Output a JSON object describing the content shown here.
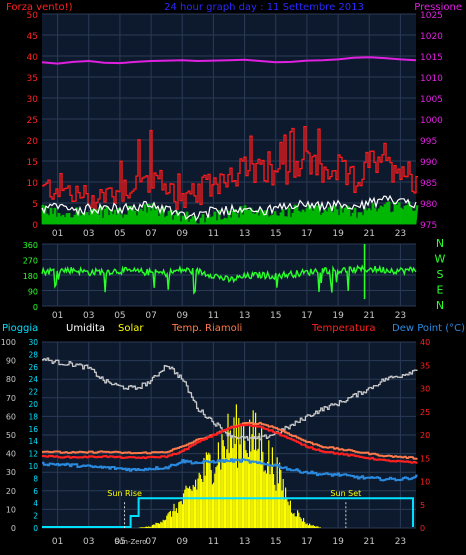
{
  "chart_data": [
    {
      "type": "line",
      "id": "wind-pressure",
      "title": "24 hour graph day : 11 Settembre 2013",
      "left_axis_label": "Forza vento!)",
      "right_axis_label": "Pressione",
      "left_ticks": [
        "0",
        "5",
        "10",
        "15",
        "20",
        "25",
        "30",
        "35",
        "40",
        "45",
        "50"
      ],
      "right_ticks": [
        "975",
        "980",
        "985",
        "990",
        "995",
        "1000",
        "1005",
        "1010",
        "1015",
        "1020",
        "1025"
      ],
      "left_ylim": [
        0,
        50
      ],
      "right_ylim": [
        975,
        1025
      ],
      "x_ticks": [
        "01",
        "03",
        "05",
        "07",
        "09",
        "11",
        "13",
        "15",
        "17",
        "19",
        "21",
        "23"
      ],
      "xlim": [
        0,
        24
      ],
      "grid": true,
      "colors": {
        "gust": "#ff1a1a",
        "speed": "#00c800",
        "average": "#ffffff",
        "pressure": "#e020e0",
        "panel": "#0d1a2e",
        "grid": "#2a3a55"
      },
      "series": [
        {
          "key": "pressure",
          "x": [
            0,
            1,
            2,
            3,
            4,
            5,
            6,
            7,
            8,
            9,
            10,
            11,
            12,
            13,
            14,
            15,
            16,
            17,
            18,
            19,
            20,
            21,
            22,
            23,
            24
          ],
          "values": [
            1013.5,
            1013.2,
            1013.6,
            1013.8,
            1013.4,
            1013.3,
            1013.6,
            1013.8,
            1013.9,
            1014.0,
            1013.8,
            1013.9,
            1014.0,
            1014.1,
            1013.8,
            1013.5,
            1013.6,
            1013.9,
            1014.0,
            1014.2,
            1014.6,
            1014.7,
            1014.5,
            1014.2,
            1014.0
          ]
        },
        {
          "key": "gust",
          "x": [
            0,
            1,
            2,
            3,
            4,
            5,
            6,
            7,
            8,
            9,
            10,
            11,
            12,
            13,
            14,
            15,
            16,
            17,
            18,
            19,
            20,
            21,
            22,
            23,
            24
          ],
          "values": [
            8,
            9,
            7,
            6,
            7,
            8,
            10,
            11,
            9,
            5,
            7,
            10,
            12,
            13,
            12,
            11,
            14,
            15,
            12,
            13,
            10,
            15,
            13,
            14,
            10
          ]
        },
        {
          "key": "average",
          "x": [
            0,
            1,
            2,
            3,
            4,
            5,
            6,
            7,
            8,
            9,
            10,
            11,
            12,
            13,
            14,
            15,
            16,
            17,
            18,
            19,
            20,
            21,
            22,
            23,
            24
          ],
          "values": [
            3.5,
            4,
            3.5,
            3.5,
            4,
            3.5,
            4,
            4.5,
            3.5,
            2.5,
            2,
            3,
            3.5,
            4,
            3,
            3.5,
            4,
            5,
            4,
            4.5,
            3.5,
            5,
            5.5,
            6,
            5
          ]
        },
        {
          "key": "speed",
          "x": [
            0,
            1,
            2,
            3,
            4,
            5,
            6,
            7,
            8,
            9,
            10,
            11,
            12,
            13,
            14,
            15,
            16,
            17,
            18,
            19,
            20,
            21,
            22,
            23,
            24
          ],
          "values": [
            3,
            2.5,
            3,
            2,
            3,
            2.5,
            3,
            3.5,
            2.5,
            1.5,
            1,
            2,
            2.5,
            3,
            2,
            2.5,
            3,
            3.5,
            3,
            3.5,
            2.5,
            4,
            4,
            4.5,
            3.5
          ]
        }
      ]
    },
    {
      "type": "line",
      "id": "wind-direction",
      "left_ticks": [
        "0",
        "90",
        "180",
        "270",
        "360"
      ],
      "ylim": [
        0,
        360
      ],
      "right_labels": [
        "N",
        "W",
        "S",
        "E",
        "N"
      ],
      "x_ticks": [
        "01",
        "03",
        "05",
        "07",
        "09",
        "11",
        "13",
        "15",
        "17",
        "19",
        "21",
        "23"
      ],
      "xlim": [
        0,
        24
      ],
      "colors": {
        "direction": "#2aff2a",
        "panel": "#0d1a2e",
        "grid": "#2a3a55"
      },
      "series": [
        {
          "key": "direction",
          "x": [
            0,
            1,
            2,
            3,
            4,
            5,
            6,
            7,
            8,
            9,
            10,
            11,
            12,
            13,
            14,
            15,
            16,
            17,
            18,
            19,
            20,
            21,
            22,
            23,
            24
          ],
          "values": [
            200,
            205,
            210,
            195,
            200,
            205,
            200,
            195,
            190,
            210,
            200,
            180,
            150,
            170,
            180,
            175,
            185,
            195,
            210,
            205,
            210,
            215,
            210,
            205,
            210
          ]
        }
      ]
    },
    {
      "type": "line",
      "id": "temp-humidity-solar",
      "legend": [
        "Pioggia",
        "Umidita",
        "Solar",
        "Temp. Riamoli",
        "Temperatura",
        "Dew Point (°C)"
      ],
      "left_ticks": [
        "0",
        "10",
        "20",
        "30",
        "40",
        "50",
        "60",
        "70",
        "80",
        "90",
        "100"
      ],
      "inner_ticks": [
        "0",
        "2",
        "4",
        "6",
        "8",
        "10",
        "12",
        "14",
        "16",
        "18",
        "20",
        "22",
        "24",
        "26",
        "28",
        "30"
      ],
      "right_ticks": [
        "0",
        "5",
        "10",
        "15",
        "20",
        "25",
        "30",
        "35",
        "40"
      ],
      "left_ylim": [
        0,
        100
      ],
      "right_ylim": [
        0,
        40
      ],
      "x_ticks": [
        "01",
        "03",
        "05",
        "07",
        "09",
        "11",
        "13",
        "15",
        "17",
        "19",
        "21",
        "23"
      ],
      "xlim": [
        0,
        24
      ],
      "annotations": [
        {
          "text": "Sun Rise",
          "x": 6.2
        },
        {
          "text": "Sun Set",
          "x": 19.5
        },
        {
          "text": "Sun-Zero",
          "x": 6.2
        }
      ],
      "colors": {
        "humidity": "#c8c8c8",
        "solar": "#ffff00",
        "feels_like": "#ff7a4a",
        "temperature": "#ff2020",
        "dew_point": "#2a8ae0",
        "rain": "#00e0ff",
        "panel": "#0d1a2e",
        "grid": "#2a3a55"
      },
      "series": [
        {
          "key": "humidity",
          "name": "Umidita",
          "x": [
            0,
            1,
            2,
            3,
            4,
            5,
            6,
            7,
            8,
            9,
            10,
            11,
            12,
            13,
            14,
            15,
            16,
            17,
            18,
            19,
            20,
            21,
            22,
            23,
            24
          ],
          "values": [
            91,
            89,
            88,
            86,
            79,
            76,
            75,
            79,
            88,
            80,
            64,
            57,
            50,
            48,
            48,
            51,
            55,
            60,
            64,
            67,
            71,
            75,
            80,
            82,
            85
          ]
        },
        {
          "key": "solar",
          "name": "Solar",
          "x": [
            0,
            1,
            2,
            3,
            4,
            5,
            6,
            7,
            8,
            9,
            10,
            11,
            12,
            13,
            14,
            15,
            16,
            17,
            18,
            19,
            20,
            21,
            22,
            23,
            24
          ],
          "values": [
            0,
            0,
            0,
            0,
            0,
            0,
            0,
            0.3,
            2,
            5,
            9,
            13,
            17,
            18,
            16,
            11,
            4,
            0.8,
            0,
            0,
            0,
            0,
            0,
            0,
            0
          ]
        },
        {
          "key": "feels_like",
          "name": "Temp. Riamoli",
          "x": [
            0,
            1,
            2,
            3,
            4,
            5,
            6,
            7,
            8,
            9,
            10,
            11,
            12,
            13,
            14,
            15,
            16,
            17,
            18,
            19,
            20,
            21,
            22,
            23,
            24
          ],
          "values": [
            16.5,
            16.3,
            16.2,
            16.3,
            16.4,
            16.2,
            16.1,
            16.2,
            16.4,
            17.5,
            19,
            20,
            21.5,
            22.5,
            22.5,
            21.5,
            20,
            18.5,
            17.5,
            17,
            16.5,
            16,
            15.5,
            15.3,
            15
          ]
        },
        {
          "key": "temperature",
          "name": "Temperatura",
          "x": [
            0,
            1,
            2,
            3,
            4,
            5,
            6,
            7,
            8,
            9,
            10,
            11,
            12,
            13,
            14,
            15,
            16,
            17,
            18,
            19,
            20,
            21,
            22,
            23,
            24
          ],
          "values": [
            15.5,
            15.3,
            15.2,
            15.3,
            15.4,
            15.2,
            15.1,
            15.2,
            15.4,
            16.5,
            18.5,
            20,
            21.5,
            22.2,
            21.8,
            20.5,
            19,
            17.5,
            16.5,
            16,
            15.5,
            15,
            14.5,
            14.3,
            14
          ]
        },
        {
          "key": "dew_point",
          "name": "Dew Point (°C)",
          "x": [
            0,
            1,
            2,
            3,
            4,
            5,
            6,
            7,
            8,
            9,
            10,
            11,
            12,
            13,
            14,
            15,
            16,
            17,
            18,
            19,
            20,
            21,
            22,
            23,
            24
          ],
          "values": [
            13.8,
            13.7,
            13.5,
            13.2,
            13,
            12.8,
            12.5,
            12.8,
            13,
            14.4,
            14,
            14.3,
            14.5,
            14.5,
            13.8,
            13.5,
            12.5,
            12,
            11.5,
            11.5,
            11,
            10.7,
            10.5,
            10.5,
            11
          ]
        }
      ]
    }
  ]
}
